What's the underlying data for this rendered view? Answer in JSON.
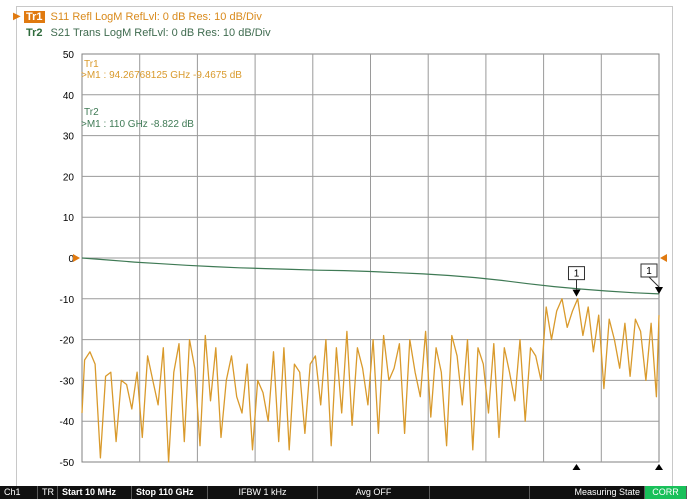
{
  "traces": {
    "tr1": {
      "tag": "Tr1",
      "header": "S11 Refl LogM RefLvl: 0  dB Res: 10  dB/Div",
      "color": "#d99a2c",
      "panel_label": "Tr1",
      "marker_readout": ">M1 :  94.26768125 GHz  -9.4675  dB"
    },
    "tr2": {
      "tag": "Tr2",
      "header": "S21 Trans LogM RefLvl: 0  dB Res: 10  dB/Div",
      "color": "#3f7a55",
      "panel_label": "Tr2",
      "marker_readout": ">M1 :  110 GHz  -8.822  dB"
    }
  },
  "markers": [
    {
      "trace": "tr1",
      "label": "1",
      "x_ghz": 94.27,
      "y_db": -9.47
    },
    {
      "trace": "tr2",
      "label": "1",
      "x_ghz": 110,
      "y_db": -8.82
    }
  ],
  "status_bar": {
    "channel": "Ch1",
    "trigger": "TR",
    "start": "Start 10 MHz",
    "stop": "Stop 110 GHz",
    "ifbw": "IFBW 1 kHz",
    "avg": "Avg OFF",
    "state": "Measuring State",
    "corr": "CORR"
  },
  "chart_data": {
    "type": "line",
    "title": "",
    "xlabel": "",
    "ylabel": "",
    "xlim": [
      0.01,
      110
    ],
    "ylim": [
      -50,
      50
    ],
    "yticks": [
      "50",
      "40",
      "30",
      "20",
      "10",
      "0",
      "-10",
      "-20",
      "-30",
      "-40",
      "-50"
    ],
    "x_divisions": 10,
    "grid": true,
    "reference_level_db": 0,
    "series": [
      {
        "key": "tr2",
        "x": [
          0,
          5,
          10,
          15,
          20,
          25,
          30,
          35,
          40,
          45,
          50,
          55,
          60,
          65,
          70,
          75,
          80,
          85,
          90,
          95,
          100,
          105,
          110
        ],
        "y": [
          0,
          -0.5,
          -1.0,
          -1.4,
          -1.8,
          -2.1,
          -2.4,
          -2.6,
          -2.8,
          -3.0,
          -3.1,
          -3.3,
          -3.6,
          -3.9,
          -4.3,
          -4.8,
          -5.5,
          -6.3,
          -7.0,
          -7.6,
          -8.1,
          -8.5,
          -8.8
        ]
      },
      {
        "key": "tr1",
        "x": [
          0,
          0.5,
          1.5,
          2.5,
          3.5,
          4.5,
          5.5,
          6.5,
          7.5,
          8.5,
          9.5,
          10.5,
          11.5,
          12.5,
          13.5,
          14.5,
          15.5,
          16.5,
          17.5,
          18.5,
          19.5,
          20.5,
          21.5,
          22.5,
          23.5,
          24.5,
          25.5,
          26.5,
          27.5,
          28.5,
          29.5,
          30.5,
          31.5,
          32.5,
          33.5,
          34.5,
          35.5,
          36.5,
          37.5,
          38.5,
          39.5,
          40.5,
          41.5,
          42.5,
          43.5,
          44.5,
          45.5,
          46.5,
          47.5,
          48.5,
          49.5,
          50.5,
          51.5,
          52.5,
          53.5,
          54.5,
          55.5,
          56.5,
          57.5,
          58.5,
          59.5,
          60.5,
          61.5,
          62.5,
          63.5,
          64.5,
          65.5,
          66.5,
          67.5,
          68.5,
          69.5,
          70.5,
          71.5,
          72.5,
          73.5,
          74.5,
          75.5,
          76.5,
          77.5,
          78.5,
          79.5,
          80.5,
          81.5,
          82.5,
          83.5,
          84.5,
          85.5,
          86.5,
          87.5,
          88.5,
          89.5,
          90.5,
          91.5,
          92.5,
          93.5,
          94.5,
          95.5,
          96.5,
          97.5,
          98.5,
          99.5,
          100.5,
          101.5,
          102.5,
          103.5,
          104.5,
          105.5,
          106.5,
          107.5,
          108.5,
          109.5,
          110
        ],
        "y": [
          -38,
          -25,
          -23,
          -26,
          -49,
          -29,
          -28,
          -45,
          -30,
          -31,
          -37,
          -28,
          -44,
          -24,
          -30,
          -36,
          -22,
          -50,
          -28,
          -21,
          -45,
          -20,
          -27,
          -46,
          -19,
          -35,
          -22,
          -44,
          -30,
          -24,
          -34,
          -38,
          -26,
          -47,
          -30,
          -33,
          -40,
          -23,
          -45,
          -22,
          -47,
          -26,
          -28,
          -43,
          -26,
          -24,
          -36,
          -20,
          -46,
          -22,
          -38,
          -18,
          -41,
          -22,
          -27,
          -36,
          -20,
          -43,
          -19,
          -30,
          -27,
          -21,
          -43,
          -20,
          -28,
          -34,
          -18,
          -39,
          -22,
          -28,
          -46,
          -19,
          -24,
          -36,
          -20,
          -47,
          -22,
          -26,
          -38,
          -21,
          -44,
          -22,
          -28,
          -35,
          -20,
          -40,
          -22,
          -24,
          -30,
          -12,
          -20,
          -13,
          -10,
          -17,
          -13,
          -10,
          -19,
          -12,
          -23,
          -14,
          -32,
          -15,
          -20,
          -27,
          -16,
          -29,
          -15,
          -18,
          -30,
          -16,
          -34,
          -14
        ]
      }
    ]
  }
}
